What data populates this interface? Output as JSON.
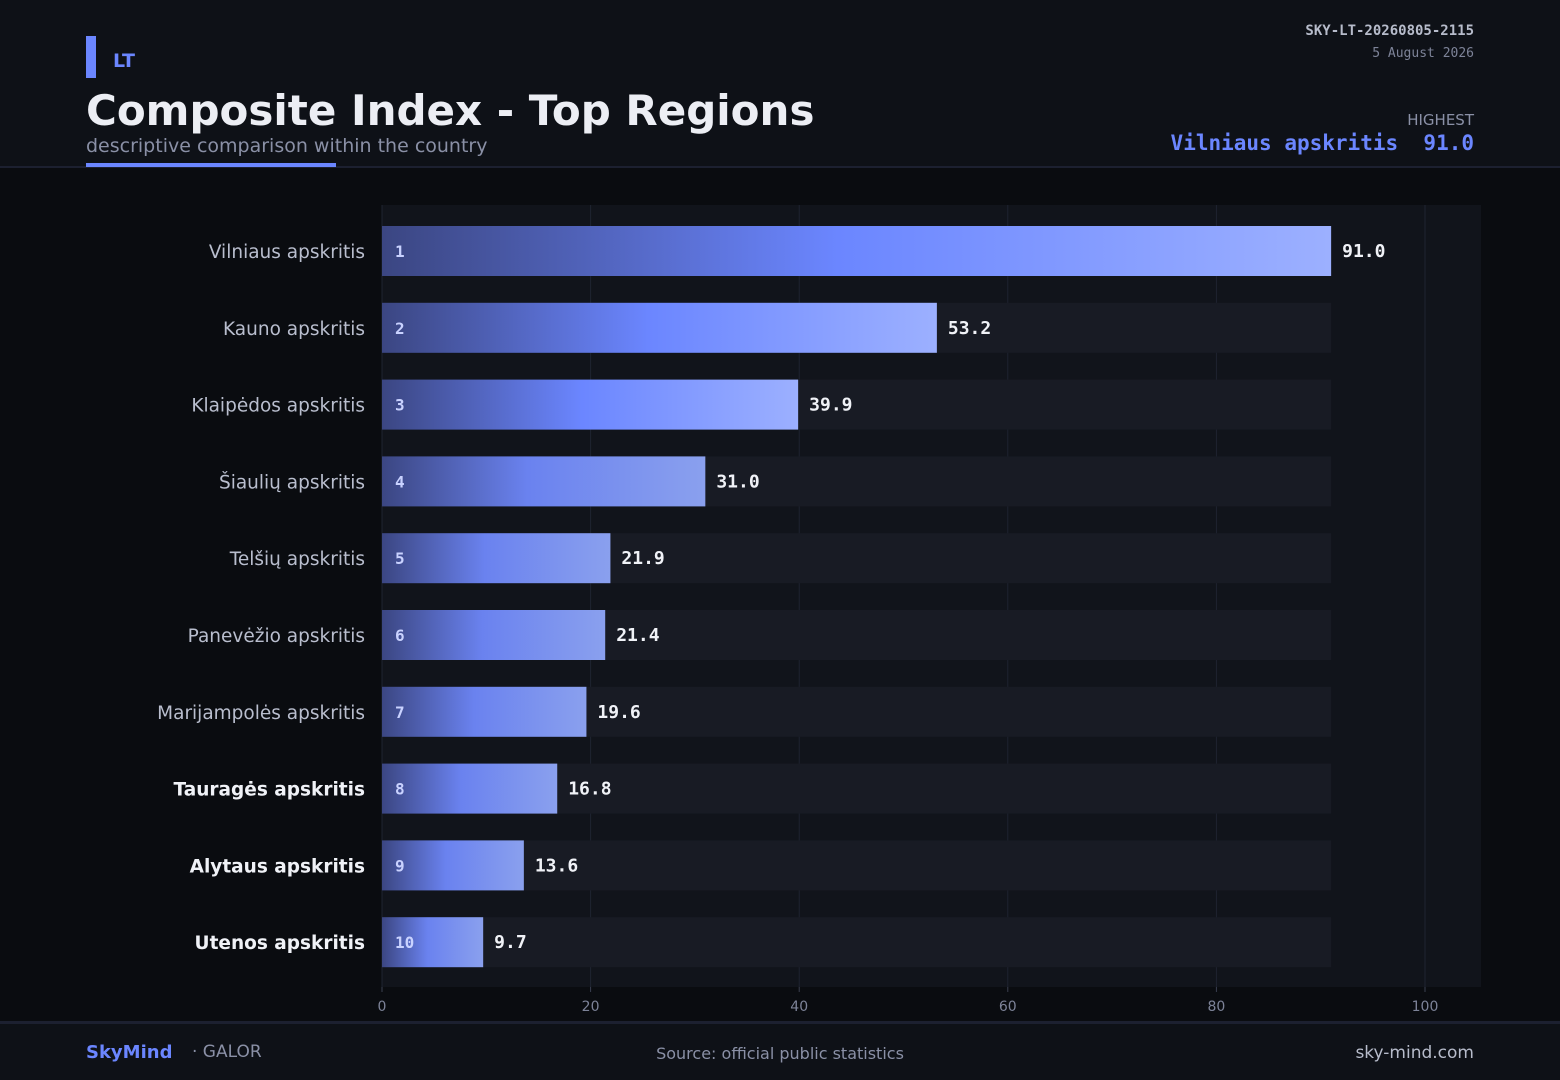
{
  "header": {
    "country_code": "LT",
    "title": "Composite Index - Top Regions",
    "subtitle": "descriptive comparison within the country",
    "doc_id": "SKY-LT-20260805-2115",
    "date": "5 August 2026",
    "highest_label": "HIGHEST",
    "highest_region": "Vilniaus apskritis",
    "highest_value": "91.0"
  },
  "footer": {
    "brand": "SkyMind",
    "brand_sub": "· GALOR",
    "source": "Source: official public statistics",
    "site": "sky-mind.com"
  },
  "colors": {
    "accent": "#6b86ff",
    "background": "#0a0c10",
    "plot_bg": "#11141b",
    "track": "#181b24"
  },
  "chart_data": {
    "type": "bar",
    "orientation": "horizontal",
    "title": "Composite Index - Top Regions",
    "xlim": [
      0,
      105
    ],
    "xticks": [
      0,
      20,
      40,
      60,
      80,
      100
    ],
    "track_max": 91.0,
    "grid": true,
    "categories": [
      "Vilniaus apskritis",
      "Kauno apskritis",
      "Klaipėdos apskritis",
      "Šiaulių apskritis",
      "Telšių apskritis",
      "Panevėžio apskritis",
      "Marijampolės apskritis",
      "Tauragės apskritis",
      "Alytaus apskritis",
      "Utenos apskritis"
    ],
    "ranks": [
      "1",
      "2",
      "3",
      "4",
      "5",
      "6",
      "7",
      "8",
      "9",
      "10"
    ],
    "values": [
      91.0,
      53.2,
      39.9,
      31.0,
      21.9,
      21.4,
      19.6,
      16.8,
      13.6,
      9.7
    ],
    "value_labels": [
      "91.0",
      "53.2",
      "39.9",
      "31.0",
      "21.9",
      "21.4",
      "19.6",
      "16.8",
      "13.6",
      "9.7"
    ],
    "bold_labels": [
      false,
      false,
      false,
      false,
      false,
      false,
      false,
      true,
      true,
      true
    ]
  }
}
